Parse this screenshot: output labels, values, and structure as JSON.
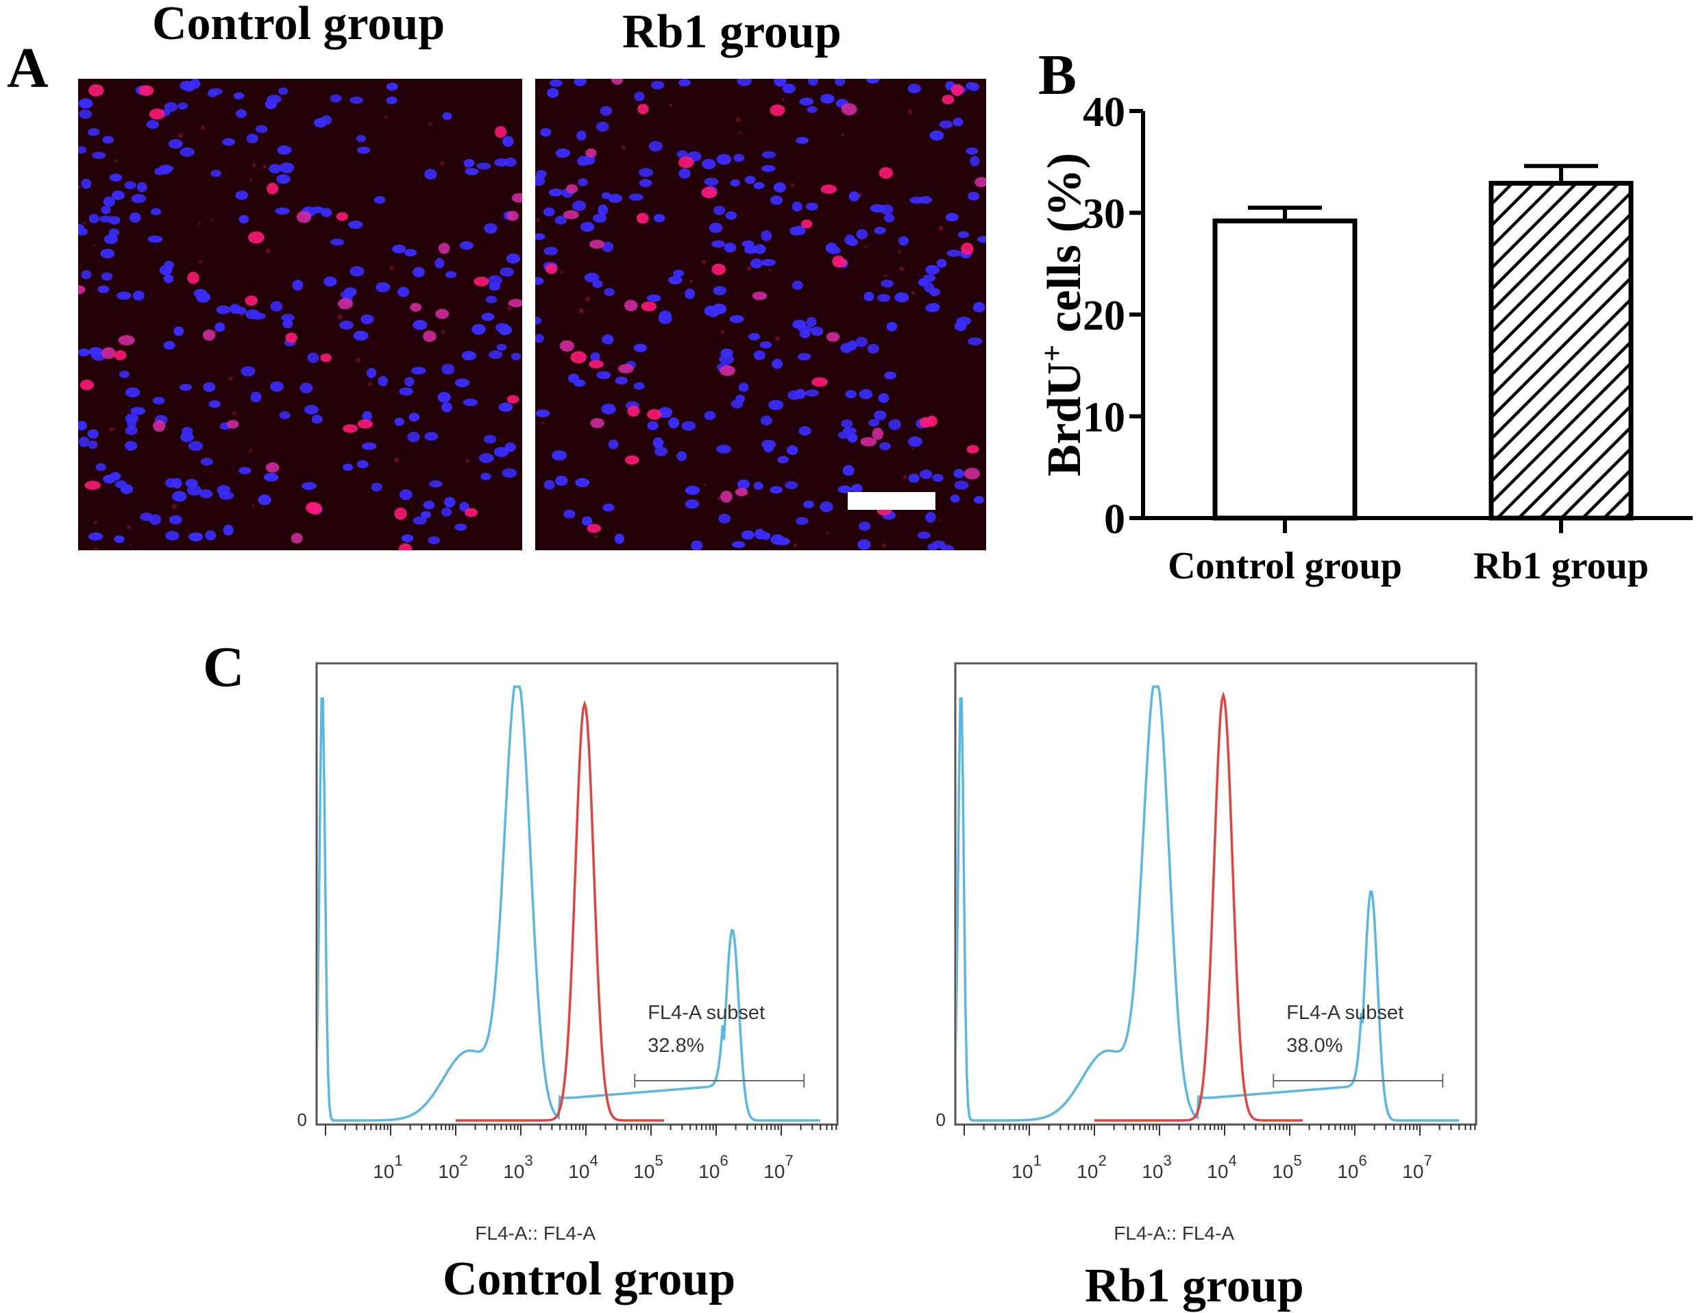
{
  "panel_a": {
    "letter": "A",
    "control_title": "Control group",
    "rb1_title": "Rb1 group"
  },
  "panel_b": {
    "letter": "B"
  },
  "panel_c": {
    "letter": "C",
    "control": {
      "gate_label": "FL4-A subset",
      "gate_value": "32.8%",
      "axis_label": "FL4-A:: FL4-A",
      "caption": "Control group",
      "blue_peak_counts_rel": 1.0,
      "red_peak_counts_rel": 0.96,
      "high_peak_counts_rel": 0.44
    },
    "rb1": {
      "gate_label": "FL4-A subset",
      "gate_value": "38.0%",
      "axis_label": "FL4-A:: FL4-A",
      "caption": "Rb1 group",
      "blue_peak_counts_rel": 1.0,
      "red_peak_counts_rel": 0.98,
      "high_peak_counts_rel": 0.53
    },
    "y_zero_label": "0",
    "x_ticks": [
      {
        "base": "10",
        "exp": "1"
      },
      {
        "base": "10",
        "exp": "2"
      },
      {
        "base": "10",
        "exp": "3"
      },
      {
        "base": "10",
        "exp": "4"
      },
      {
        "base": "10",
        "exp": "5"
      },
      {
        "base": "10",
        "exp": "6"
      },
      {
        "base": "10",
        "exp": "7"
      }
    ]
  },
  "colors": {
    "micro_bg": "#230008",
    "nucleus_blue": "#3a2cff",
    "nucleus_pink": "#ff1a78",
    "histo_blue": "#5ab8e0",
    "histo_red": "#e2433f",
    "gate_gray": "#6a6a6a"
  },
  "chart_data": {
    "type": "bar",
    "categories": [
      "Control group",
      "Rb1 group"
    ],
    "values": [
      29.2,
      32.9
    ],
    "errors": [
      1.3,
      1.7
    ],
    "ylabel_main": "BrdU",
    "ylabel_sup": "+",
    "ylabel_rest": " cells (%)",
    "xlabel": "",
    "ylim": [
      0,
      40
    ],
    "yticks": [
      0,
      10,
      20,
      30,
      40
    ],
    "fills": [
      "none",
      "hatched"
    ]
  }
}
